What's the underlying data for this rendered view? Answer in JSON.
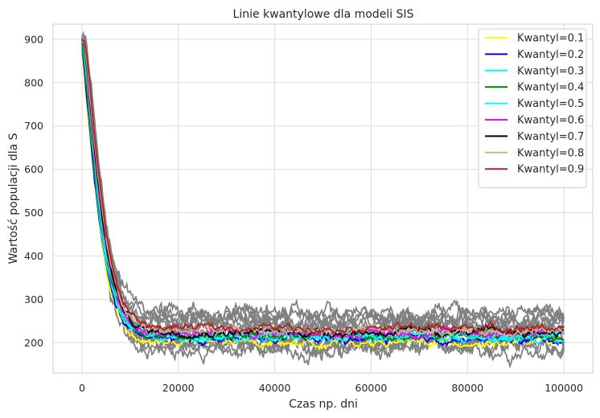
{
  "chart_data": {
    "type": "line",
    "title": "Linie kwantylowe dla modeli SIS",
    "xlabel": "Czas np. dni",
    "ylabel": "Wartość populacji dla S",
    "xlim": [
      -6000,
      106000
    ],
    "ylim": [
      130,
      935
    ],
    "x_ticks": [
      0,
      20000,
      40000,
      60000,
      80000,
      100000
    ],
    "x_tick_labels": [
      "0",
      "20000",
      "40000",
      "60000",
      "80000",
      "100000"
    ],
    "y_ticks": [
      200,
      300,
      400,
      500,
      600,
      700,
      800,
      900
    ],
    "y_tick_labels": [
      "200",
      "300",
      "400",
      "500",
      "600",
      "700",
      "800",
      "900"
    ],
    "grid": true,
    "legend_position": "top-right",
    "background_simulations": {
      "count": 14,
      "color": "#808080",
      "description_start_value": 900,
      "plateau_range": [
        185,
        270
      ]
    },
    "series": [
      {
        "name": "Kwantyl=0.1",
        "color": "#ffff00",
        "start": 900,
        "plateau": 200
      },
      {
        "name": "Kwantyl=0.2",
        "color": "#0000ff",
        "start": 900,
        "plateau": 207
      },
      {
        "name": "Kwantyl=0.3",
        "color": "#00ffff",
        "start": 900,
        "plateau": 212
      },
      {
        "name": "Kwantyl=0.4",
        "color": "#008000",
        "start": 900,
        "plateau": 215
      },
      {
        "name": "Kwantyl=0.5",
        "color": "#00ffff",
        "start": 900,
        "plateau": 217
      },
      {
        "name": "Kwantyl=0.6",
        "color": "#ff00ff",
        "start": 900,
        "plateau": 222
      },
      {
        "name": "Kwantyl=0.7",
        "color": "#000000",
        "start": 900,
        "plateau": 224
      },
      {
        "name": "Kwantyl=0.8",
        "color": "#d2b48c",
        "start": 900,
        "plateau": 227
      },
      {
        "name": "Kwantyl=0.9",
        "color": "#b22222",
        "start": 900,
        "plateau": 235
      }
    ],
    "decay_time_constant": 4200
  }
}
